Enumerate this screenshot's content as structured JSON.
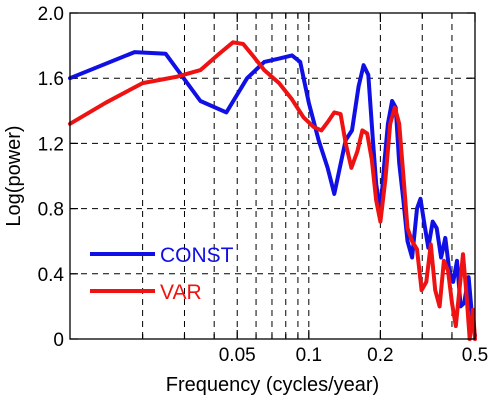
{
  "chart_data": {
    "type": "line",
    "xlabel": "Frequency (cycles/year)",
    "ylabel": "Log(power)",
    "xscale": "log",
    "xlim": [
      0.0099,
      0.5
    ],
    "ylim": [
      0,
      2.0
    ],
    "grid": true,
    "legend_position": "bottom-left",
    "x_tick_labels": [
      {
        "value": 0.05,
        "label": "0.05"
      },
      {
        "value": 0.1,
        "label": "0.1"
      },
      {
        "value": 0.2,
        "label": "0.2"
      },
      {
        "value": 0.5,
        "label": "0.5"
      }
    ],
    "x_grid_values": [
      0.02,
      0.03,
      0.04,
      0.05,
      0.06,
      0.07,
      0.08,
      0.09,
      0.1,
      0.2,
      0.3,
      0.4
    ],
    "x_minor_tick_values": [
      0.02,
      0.03,
      0.04,
      0.06,
      0.07,
      0.08,
      0.09,
      0.3,
      0.4
    ],
    "y_tick_labels": [
      {
        "value": 0,
        "label": "0"
      },
      {
        "value": 0.4,
        "label": "0.4"
      },
      {
        "value": 0.8,
        "label": "0.8"
      },
      {
        "value": 1.2,
        "label": "1.2"
      },
      {
        "value": 1.6,
        "label": "1.6"
      },
      {
        "value": 2.0,
        "label": "2.0"
      }
    ],
    "series": [
      {
        "name": "CONST",
        "color": "#1010e6",
        "x": [
          0.0099,
          0.0185,
          0.025,
          0.035,
          0.045,
          0.055,
          0.065,
          0.075,
          0.085,
          0.092,
          0.1,
          0.11,
          0.12,
          0.128,
          0.135,
          0.143,
          0.152,
          0.162,
          0.17,
          0.178,
          0.186,
          0.192,
          0.2,
          0.207,
          0.215,
          0.224,
          0.232,
          0.24,
          0.25,
          0.26,
          0.272,
          0.285,
          0.295,
          0.305,
          0.318,
          0.332,
          0.345,
          0.36,
          0.375,
          0.39,
          0.405,
          0.42,
          0.435,
          0.45,
          0.47,
          0.485,
          0.5
        ],
        "y": [
          1.6,
          1.76,
          1.75,
          1.46,
          1.39,
          1.6,
          1.7,
          1.72,
          1.74,
          1.7,
          1.45,
          1.22,
          1.05,
          0.89,
          1.05,
          1.22,
          1.28,
          1.55,
          1.68,
          1.62,
          1.22,
          0.95,
          0.78,
          1.05,
          1.32,
          1.46,
          1.42,
          1.08,
          0.85,
          0.6,
          0.5,
          0.8,
          0.86,
          0.72,
          0.56,
          0.72,
          0.68,
          0.5,
          0.62,
          0.42,
          0.35,
          0.48,
          0.2,
          0.22,
          0.38,
          0.15,
          0.02
        ]
      },
      {
        "name": "VAR",
        "color": "#ee1212",
        "x": [
          0.0099,
          0.014,
          0.02,
          0.028,
          0.035,
          0.042,
          0.048,
          0.053,
          0.058,
          0.065,
          0.075,
          0.085,
          0.095,
          0.105,
          0.113,
          0.12,
          0.128,
          0.136,
          0.143,
          0.151,
          0.16,
          0.168,
          0.176,
          0.184,
          0.192,
          0.2,
          0.21,
          0.22,
          0.23,
          0.24,
          0.25,
          0.26,
          0.272,
          0.285,
          0.298,
          0.312,
          0.326,
          0.34,
          0.355,
          0.37,
          0.385,
          0.4,
          0.415,
          0.43,
          0.445,
          0.46,
          0.475,
          0.49,
          0.5
        ],
        "y": [
          1.32,
          1.45,
          1.57,
          1.61,
          1.65,
          1.75,
          1.82,
          1.81,
          1.74,
          1.65,
          1.57,
          1.47,
          1.36,
          1.3,
          1.28,
          1.33,
          1.39,
          1.38,
          1.2,
          1.05,
          1.15,
          1.28,
          1.26,
          1.1,
          0.85,
          0.72,
          0.98,
          1.32,
          1.42,
          1.32,
          1.0,
          0.68,
          0.6,
          0.55,
          0.3,
          0.35,
          0.58,
          0.3,
          0.2,
          0.48,
          0.42,
          0.22,
          0.08,
          0.3,
          0.52,
          0.28,
          0.0,
          0.18,
          0.0
        ]
      }
    ]
  }
}
